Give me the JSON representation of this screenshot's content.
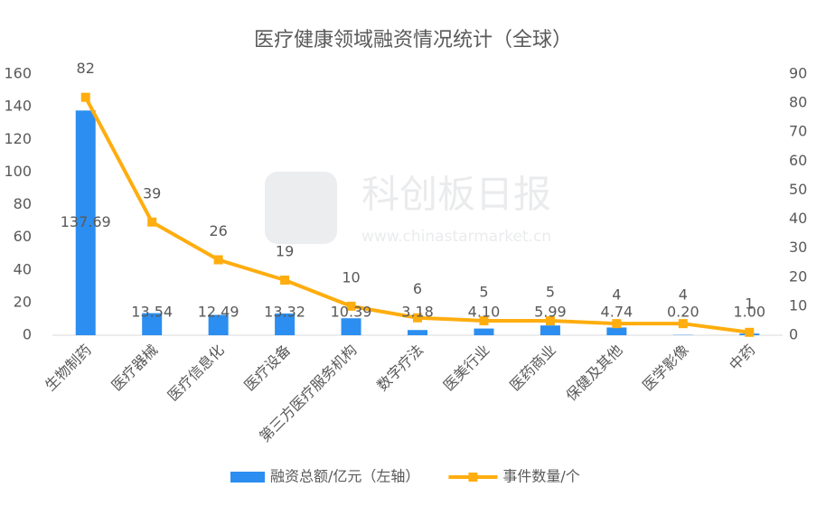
{
  "chart_data": {
    "type": "bar-line",
    "title": "医疗健康领域融资情况统计（全球）",
    "watermark": {
      "brand": "科创板日报",
      "url": "www.chinastarmarket.cn"
    },
    "categories": [
      "生物制药",
      "医疗器械",
      "医疗信息化",
      "医疗设备",
      "第三方医疗服务机构",
      "数字疗法",
      "医美行业",
      "医药商业",
      "保健及其他",
      "医学影像",
      "中药"
    ],
    "series": [
      {
        "name": "融资总额/亿元（左轴）",
        "type": "bar",
        "color": "#2b8ef0",
        "values": [
          137.69,
          13.54,
          12.49,
          13.32,
          10.39,
          3.18,
          4.1,
          5.99,
          4.74,
          0.2,
          1.0
        ],
        "value_labels": [
          "137.69",
          "13.54",
          "12.49",
          "13.32",
          "10.39",
          "3.18",
          "4.10",
          "5.99",
          "4.74",
          "0.20",
          "1.00"
        ]
      },
      {
        "name": "事件数量/个",
        "type": "line",
        "axis": "y2",
        "color": "#ffad0f",
        "values": [
          82,
          39,
          26,
          19,
          10,
          6,
          5,
          5,
          4,
          4,
          1
        ]
      }
    ],
    "ylim": [
      0,
      160
    ],
    "yticks": [
      0,
      20,
      40,
      60,
      80,
      100,
      120,
      140,
      160
    ],
    "y2lim": [
      0,
      90
    ],
    "y2ticks": [
      0,
      10,
      20,
      30,
      40,
      50,
      60,
      70,
      80,
      90
    ],
    "legend": "bottom"
  }
}
